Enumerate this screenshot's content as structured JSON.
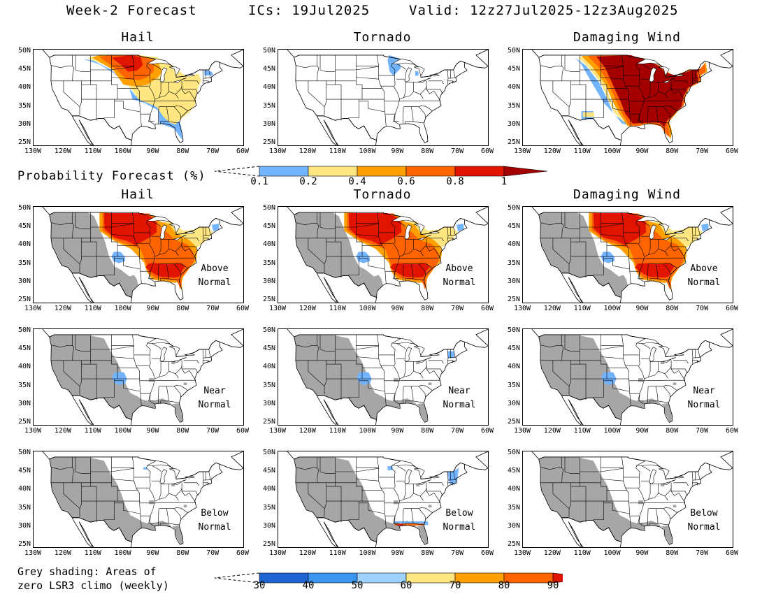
{
  "header": {
    "title": "Week-2 Forecast",
    "ics": "ICs: 19Jul2025",
    "valid": "Valid: 12z27Jul2025-12z3Aug2025"
  },
  "probability_section": {
    "label": "Probability Forecast (%)",
    "colorbar": {
      "labels": [
        "0.1",
        "0.2",
        "0.4",
        "0.6",
        "0.8",
        "1"
      ],
      "colors": [
        "#73b4ff",
        "#ffe680",
        "#ffa000",
        "#ff6400",
        "#e11400",
        "#a50000"
      ]
    }
  },
  "panels": [
    {
      "title": "Hail",
      "region": ""
    },
    {
      "title": "Tornado",
      "region": ""
    },
    {
      "title": "Damaging Wind",
      "region": ""
    },
    {
      "title": "Hail",
      "region": "Above Normal"
    },
    {
      "title": "Tornado",
      "region": "Above Normal"
    },
    {
      "title": "Damaging Wind",
      "region": "Above Normal"
    },
    {
      "title": "",
      "region": "Near Normal"
    },
    {
      "title": "",
      "region": "Near Normal"
    },
    {
      "title": "",
      "region": "Near Normal"
    },
    {
      "title": "",
      "region": "Below Normal"
    },
    {
      "title": "",
      "region": "Below Normal"
    },
    {
      "title": "",
      "region": "Below Normal"
    }
  ],
  "axes": {
    "lat_labels": [
      "50N",
      "45N",
      "40N",
      "35N",
      "30N",
      "25N"
    ],
    "lon_labels": [
      "130W",
      "120W",
      "110W",
      "100W",
      "90W",
      "80W",
      "70W",
      "60W"
    ]
  },
  "footer": {
    "note_line1": "Grey shading: Areas of",
    "note_line2": "zero LSR3 climo (weekly)",
    "colorbar": {
      "labels": [
        "30",
        "40",
        "50",
        "60",
        "70",
        "80",
        "90"
      ],
      "colors": [
        "#1e64d2",
        "#3c96f0",
        "#a0d2ff",
        "#ffe680",
        "#ffa000",
        "#ff6400",
        "#e11400"
      ]
    }
  },
  "colors": {
    "grey_shade": "#a6a6a6",
    "light_blue": "#73b4ff",
    "yellow": "#ffe680",
    "orange": "#ffa000",
    "dark_orange": "#ff6400",
    "red": "#e11400",
    "dark_red": "#a50000"
  }
}
